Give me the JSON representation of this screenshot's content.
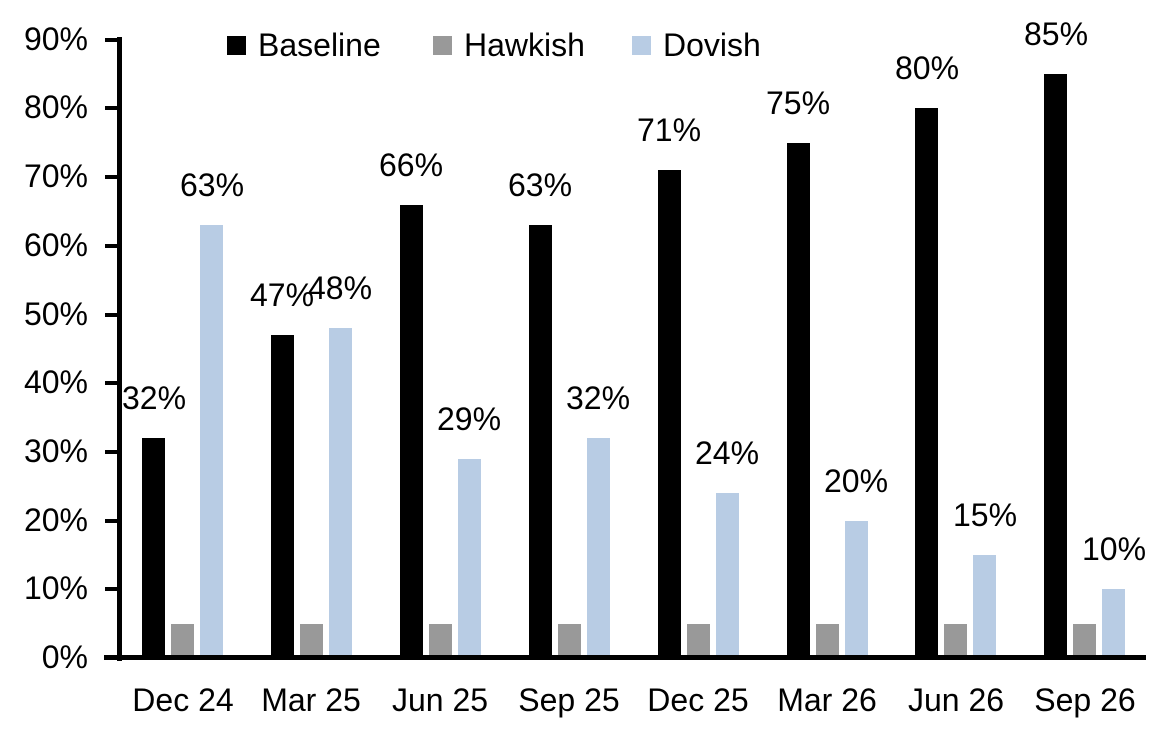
{
  "chart_data": {
    "type": "bar",
    "title": "",
    "categories": [
      "Dec 24",
      "Mar 25",
      "Jun 25",
      "Sep 25",
      "Dec 25",
      "Mar 26",
      "Jun 26",
      "Sep 26"
    ],
    "series": [
      {
        "name": "Baseline",
        "color": "#000000",
        "values": [
          32,
          47,
          66,
          63,
          71,
          75,
          80,
          85
        ],
        "data_labels": [
          "32%",
          "47%",
          "66%",
          "63%",
          "71%",
          "75%",
          "80%",
          "85%"
        ]
      },
      {
        "name": "Hawkish",
        "color": "#999999",
        "values": [
          5,
          5,
          5,
          5,
          5,
          5,
          5,
          5
        ],
        "data_labels": null
      },
      {
        "name": "Dovish",
        "color": "#B8CCE4",
        "values": [
          63,
          48,
          29,
          32,
          24,
          20,
          15,
          10
        ],
        "data_labels": [
          "63%",
          "48%",
          "29%",
          "32%",
          "24%",
          "20%",
          "15%",
          "10%"
        ]
      }
    ],
    "y_axis": {
      "min": 0,
      "max": 90,
      "step": 10,
      "tick_labels": [
        "0%",
        "10%",
        "20%",
        "30%",
        "40%",
        "50%",
        "60%",
        "70%",
        "80%",
        "90%"
      ]
    },
    "x_axis": {
      "tick_labels": [
        "Dec 24",
        "Mar 25",
        "Jun 25",
        "Sep 25",
        "Dec 25",
        "Mar 26",
        "Jun 26",
        "Sep 26"
      ]
    },
    "legend": {
      "position": "top",
      "entries": [
        "Baseline",
        "Hawkish",
        "Dovish"
      ]
    },
    "grid": false,
    "background_color": "#FFFFFF",
    "axis_color": "#000000"
  }
}
